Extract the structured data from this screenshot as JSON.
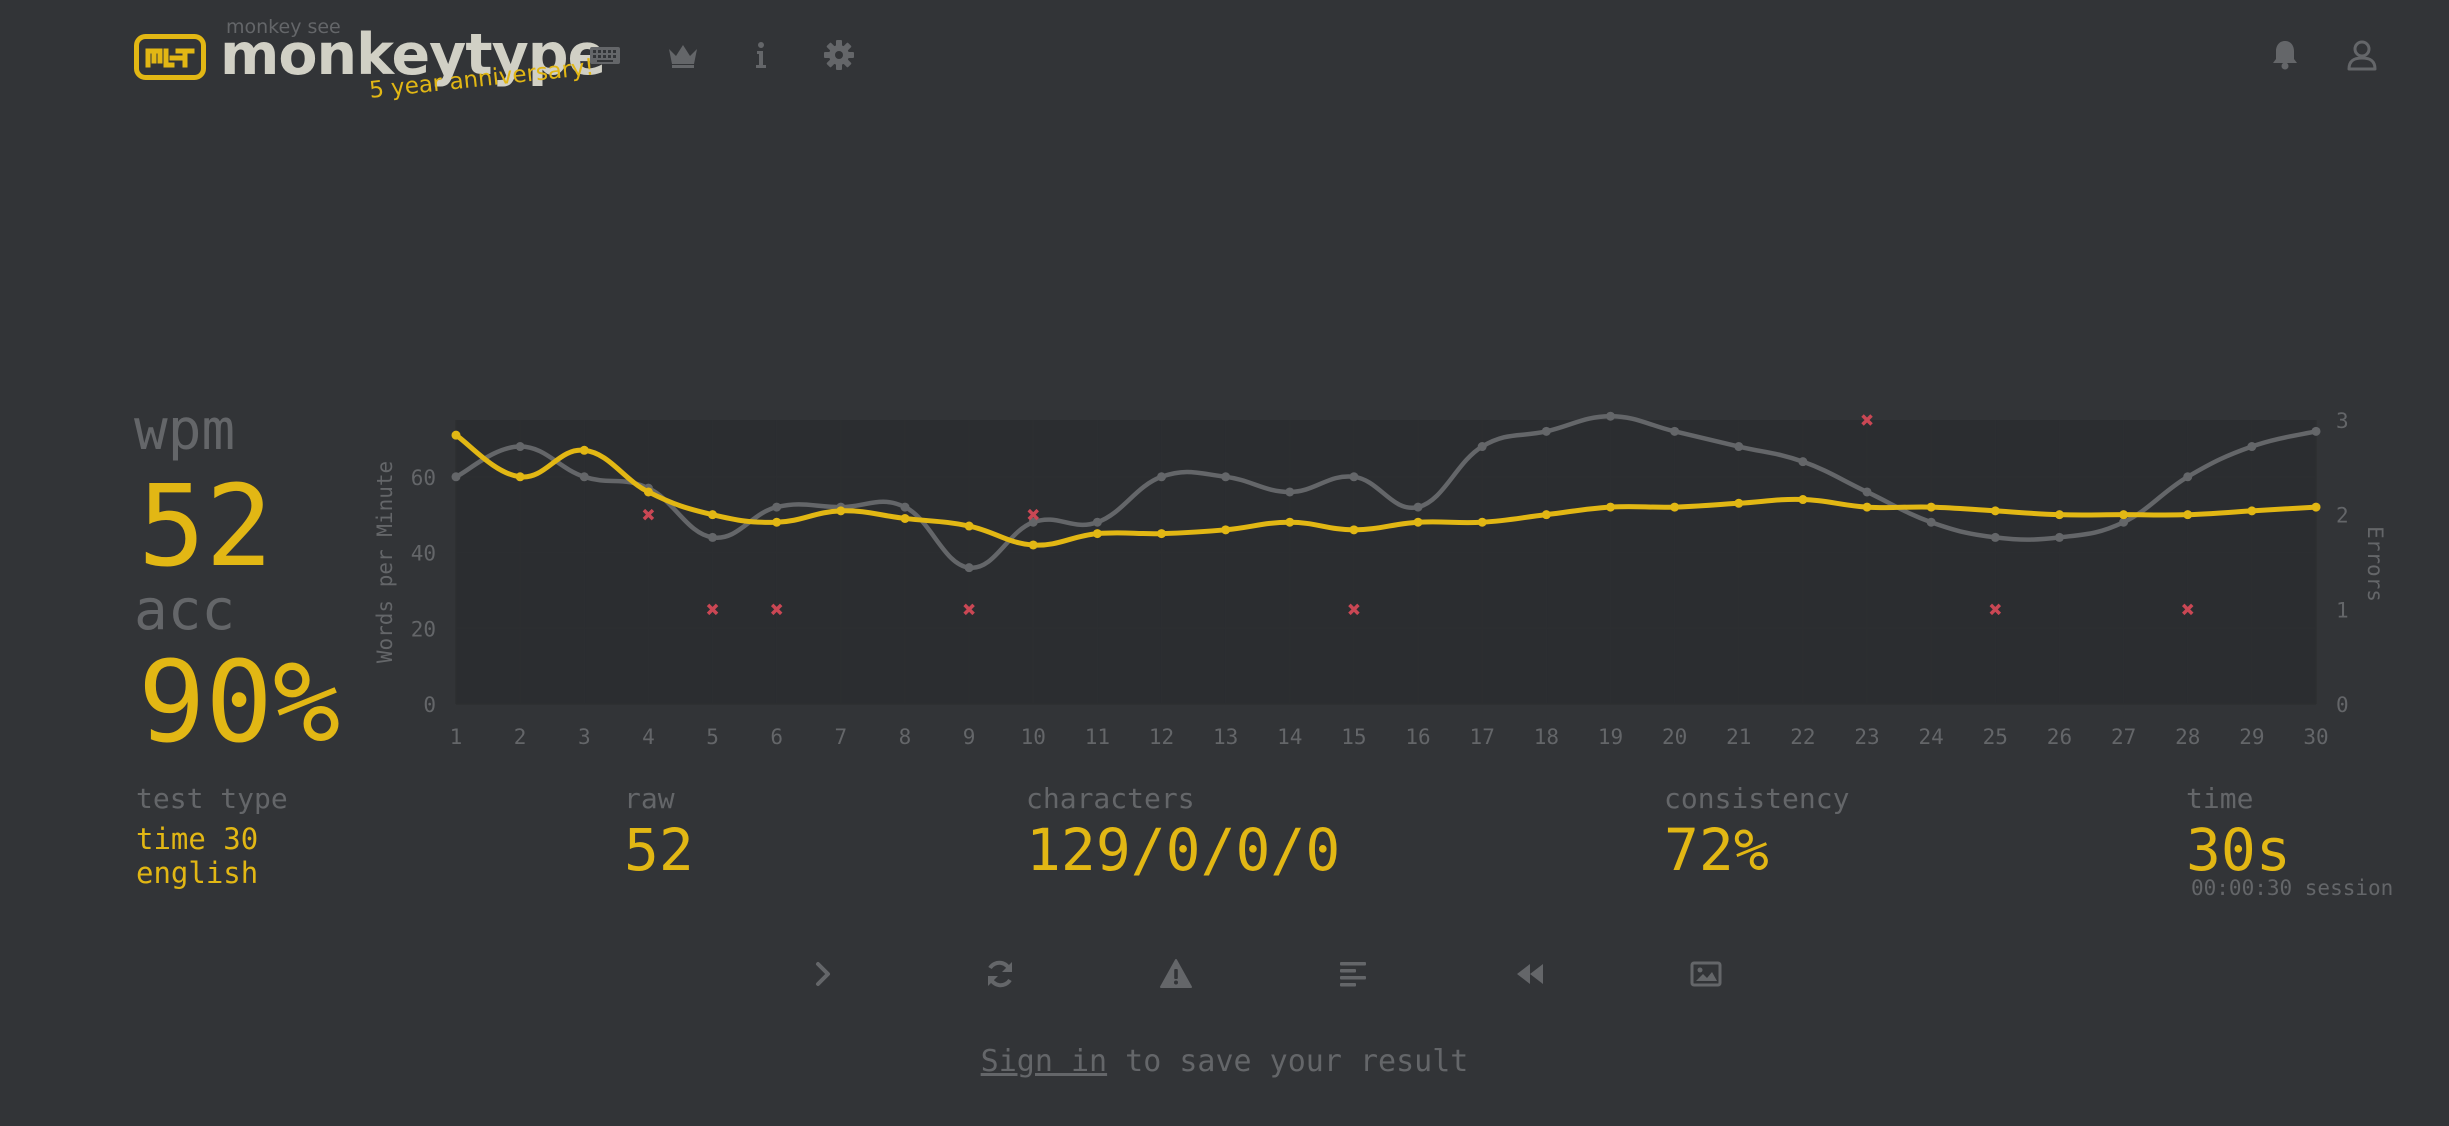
{
  "header": {
    "logo_top": "monkey see",
    "logo_text": "monkeytype",
    "anniversary": "5 year anniversary!",
    "nav_icons": [
      "keyboard-icon",
      "crown-icon",
      "info-icon",
      "gear-icon",
      "bell-icon",
      "user-icon"
    ]
  },
  "stats": {
    "wpm_label": "wpm",
    "wpm_value": "52",
    "acc_label": "acc",
    "acc_value": "90%",
    "test_type_label": "test type",
    "test_type_mode": "time 30",
    "test_type_language": "english",
    "raw_label": "raw",
    "raw_value": "52",
    "characters_label": "characters",
    "characters_value": "129/0/0/0",
    "consistency_label": "consistency",
    "consistency_value": "72%",
    "time_label": "time",
    "time_value": "30s",
    "session_value": "00:00:30 session"
  },
  "chart_data": {
    "type": "line",
    "ylabel": "Words per Minute",
    "y2label": "Errors",
    "x": [
      1,
      2,
      3,
      4,
      5,
      6,
      7,
      8,
      9,
      10,
      11,
      12,
      13,
      14,
      15,
      16,
      17,
      18,
      19,
      20,
      21,
      22,
      23,
      24,
      25,
      26,
      27,
      28,
      29,
      30
    ],
    "ylim": [
      0,
      75
    ],
    "yticks": [
      0,
      20,
      40,
      60
    ],
    "y2lim": [
      0,
      3
    ],
    "y2ticks": [
      0,
      1,
      2,
      3
    ],
    "series": [
      {
        "role": "raw",
        "color": "#646669",
        "values": [
          60,
          68,
          60,
          57,
          44,
          52,
          52,
          52,
          36,
          48,
          48,
          60,
          60,
          56,
          60,
          52,
          68,
          72,
          76,
          72,
          68,
          64,
          56,
          48,
          44,
          44,
          48,
          60,
          68,
          72
        ]
      },
      {
        "role": "wpm",
        "color": "#e2b714",
        "values": [
          71,
          60,
          67,
          56,
          50,
          48,
          51,
          49,
          47,
          42,
          45,
          45,
          46,
          48,
          46,
          48,
          48,
          50,
          52,
          52,
          53,
          54,
          52,
          52,
          51,
          50,
          50,
          50,
          51,
          52
        ]
      }
    ],
    "errors": [
      {
        "x": 4,
        "count": 2
      },
      {
        "x": 5,
        "count": 1
      },
      {
        "x": 6,
        "count": 1
      },
      {
        "x": 9,
        "count": 1
      },
      {
        "x": 10,
        "count": 2
      },
      {
        "x": 15,
        "count": 1
      },
      {
        "x": 23,
        "count": 3
      },
      {
        "x": 25,
        "count": 1
      },
      {
        "x": 28,
        "count": 1
      }
    ],
    "colors": {
      "error": "#ca4754",
      "grid": "#2c2e31",
      "plot_bg": "#2b2d30"
    }
  },
  "actions": [
    {
      "name": "next-test-button",
      "icon": "chevron-right-icon"
    },
    {
      "name": "restart-test-button",
      "icon": "refresh-icon"
    },
    {
      "name": "practice-words-button",
      "icon": "warning-icon"
    },
    {
      "name": "words-history-button",
      "icon": "align-left-icon"
    },
    {
      "name": "replay-button",
      "icon": "backward-icon"
    },
    {
      "name": "save-screenshot-button",
      "icon": "image-icon"
    }
  ],
  "footer": {
    "signin_link": "Sign in",
    "signin_rest": " to save your result"
  },
  "theme": {
    "main": "#e2b714",
    "sub": "#646669",
    "bg": "#323437",
    "text": "#d1d0c5"
  }
}
